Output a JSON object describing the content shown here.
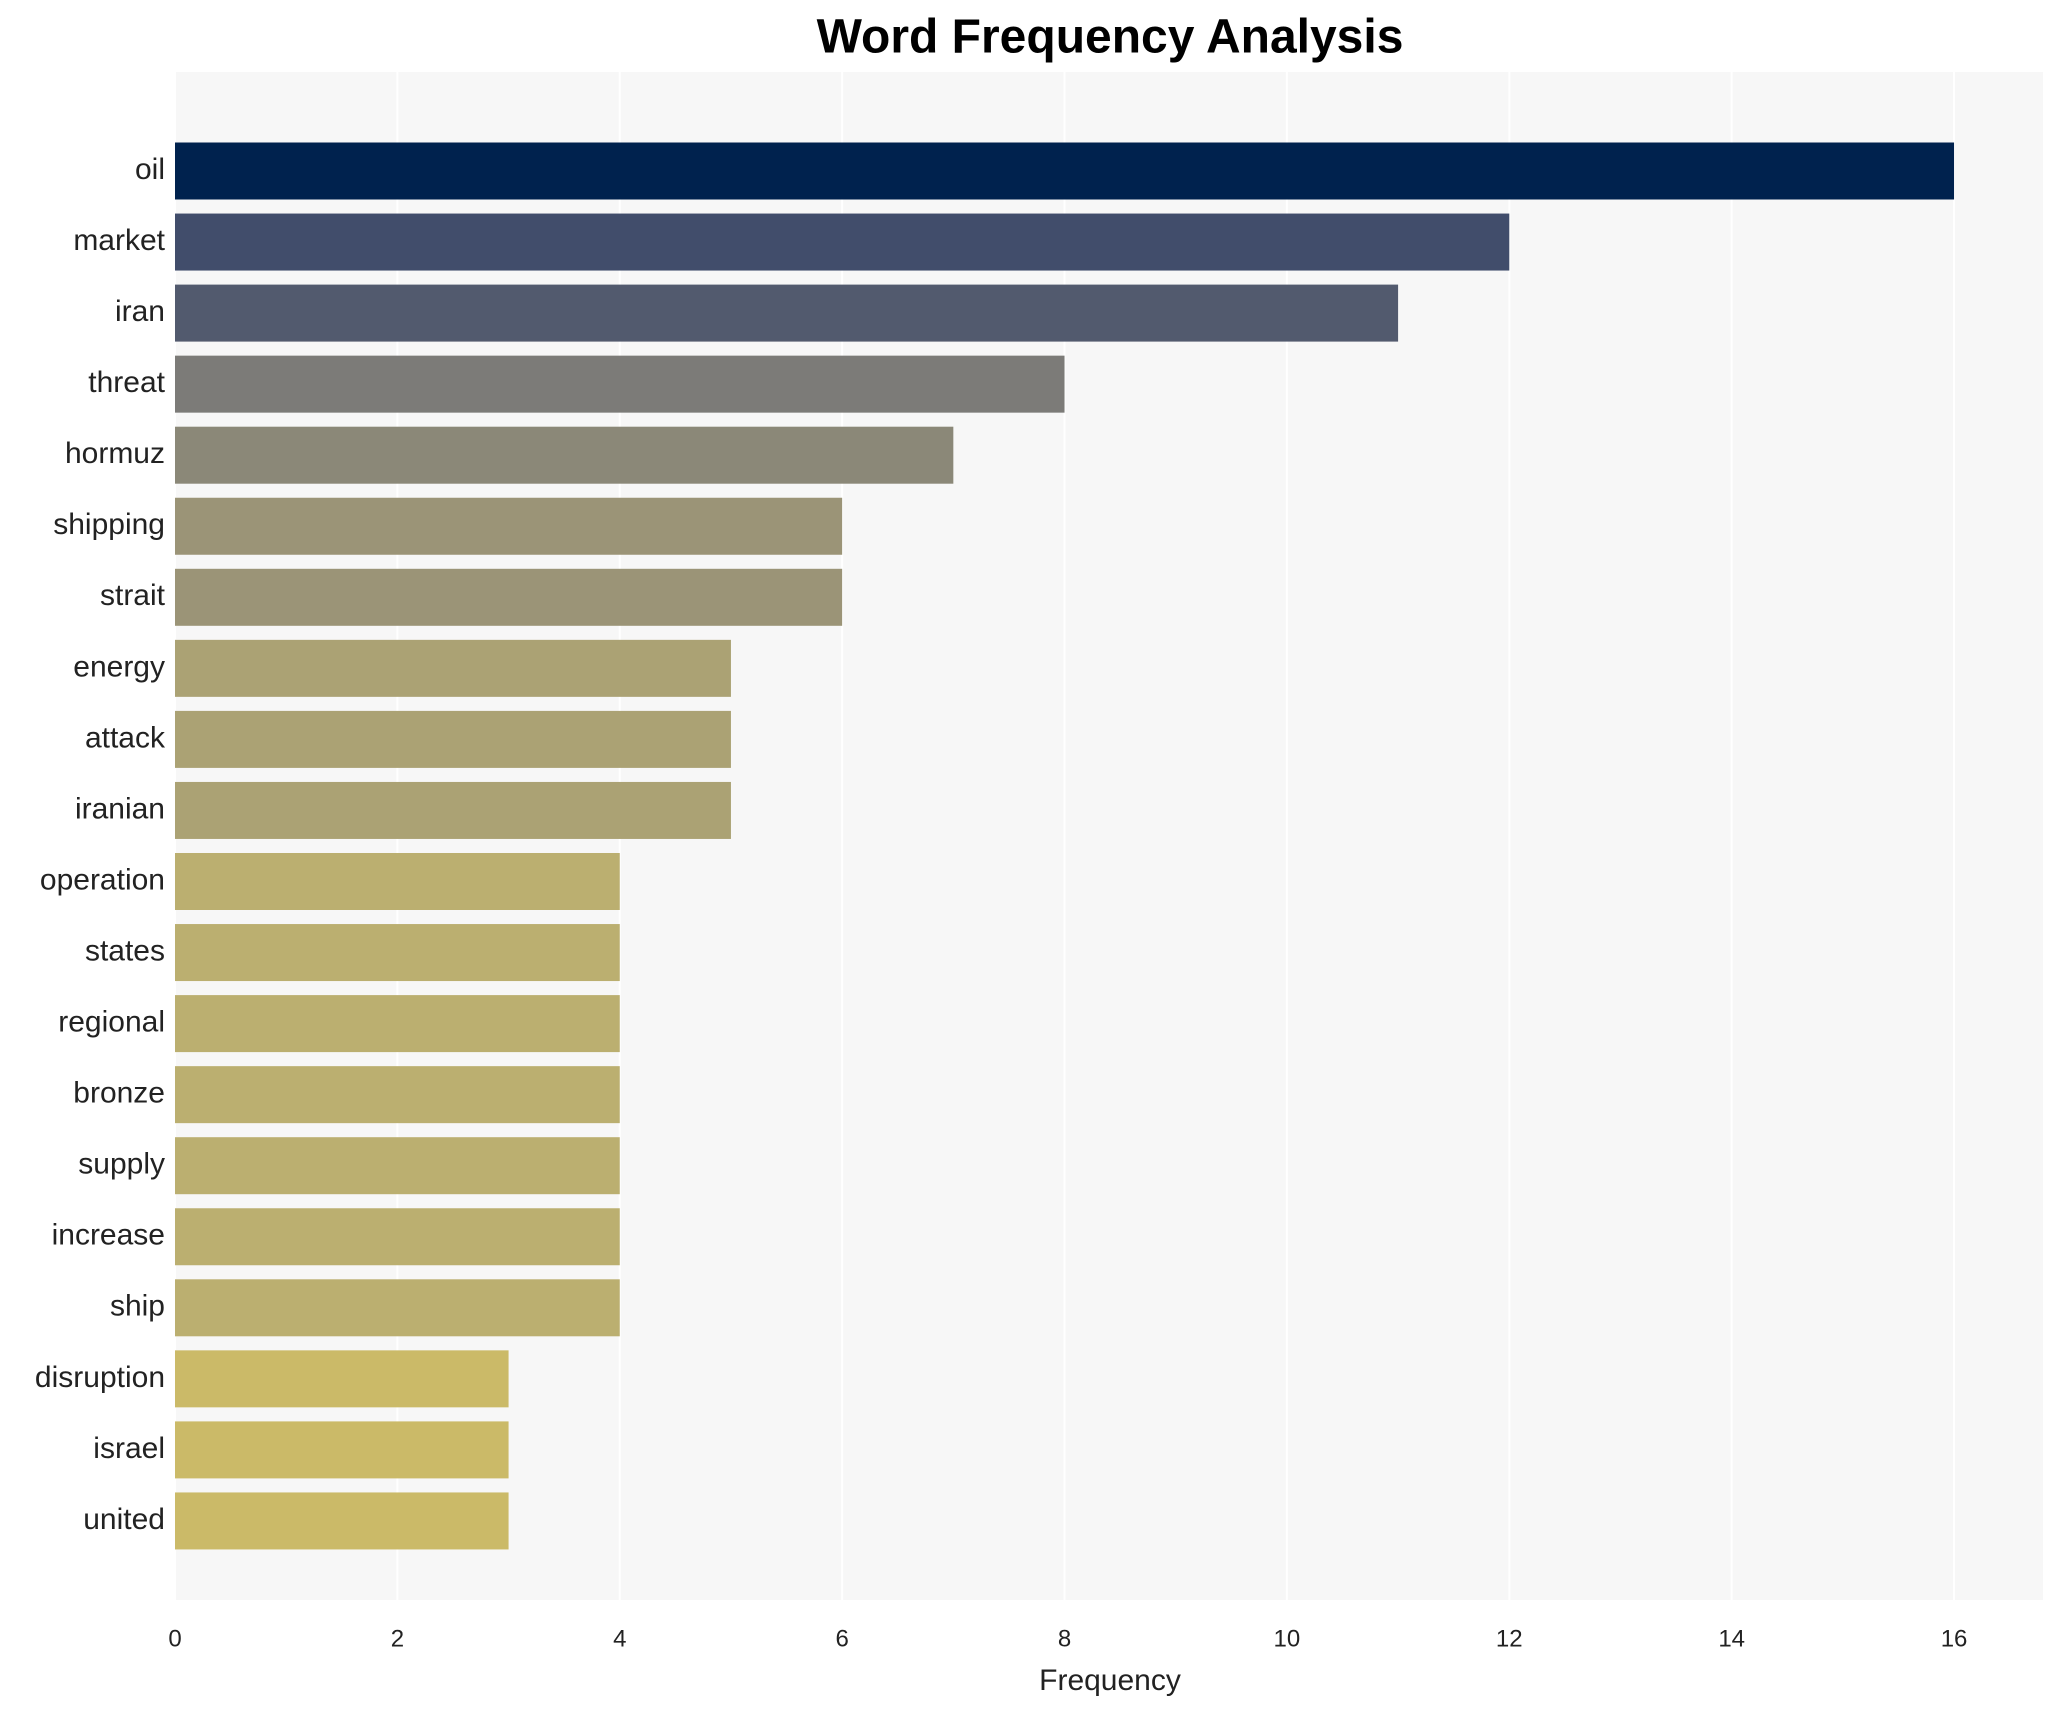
{
  "chart_data": {
    "type": "barh",
    "title": "Word Frequency Analysis",
    "xlabel": "Frequency",
    "categories": [
      "oil",
      "market",
      "iran",
      "threat",
      "hormuz",
      "shipping",
      "strait",
      "energy",
      "attack",
      "iranian",
      "operation",
      "states",
      "regional",
      "bronze",
      "supply",
      "increase",
      "ship",
      "disruption",
      "israel",
      "united"
    ],
    "values": [
      16,
      12,
      11,
      8,
      7,
      6,
      6,
      5,
      5,
      5,
      4,
      4,
      4,
      4,
      4,
      4,
      4,
      3,
      3,
      3
    ],
    "colors": [
      "#00224e",
      "#414d6b",
      "#525a6e",
      "#7c7b78",
      "#8b8878",
      "#9b9477",
      "#9b9477",
      "#aba274",
      "#aba274",
      "#aba274",
      "#bbaf70",
      "#bbaf70",
      "#bbaf70",
      "#bbaf70",
      "#bbaf70",
      "#bbaf70",
      "#bbaf70",
      "#cbba68",
      "#cbba68",
      "#cbba68"
    ],
    "xlim": [
      0,
      16.8
    ],
    "xticks": [
      0,
      2,
      4,
      6,
      8,
      10,
      12,
      14,
      16
    ],
    "grid": true
  }
}
